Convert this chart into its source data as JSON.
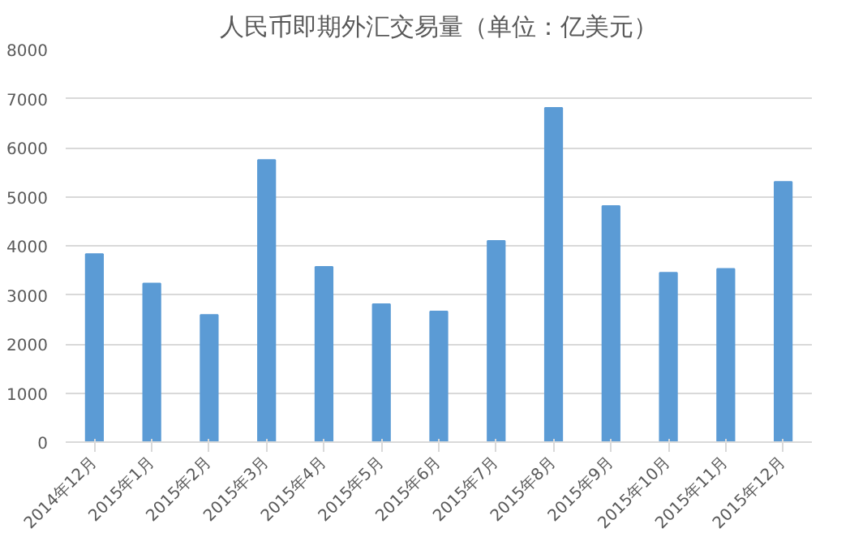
{
  "chart_data": {
    "type": "bar",
    "title": "人民币即期外汇交易量（单位：亿美元）",
    "categories": [
      "2014年12月",
      "2015年1月",
      "2015年2月",
      "2015年3月",
      "2015年4月",
      "2015年5月",
      "2015年6月",
      "2015年7月",
      "2015年8月",
      "2015年9月",
      "2015年10月",
      "2015年11月",
      "2015年12月"
    ],
    "values": [
      3830,
      3230,
      2590,
      5750,
      3570,
      2810,
      2660,
      4100,
      6810,
      4810,
      3450,
      3530,
      5300
    ],
    "color": "#5b9bd5",
    "ylim": [
      0,
      8000
    ],
    "yticks": [
      0,
      1000,
      2000,
      3000,
      4000,
      5000,
      6000,
      7000,
      8000
    ],
    "grid": "y"
  }
}
